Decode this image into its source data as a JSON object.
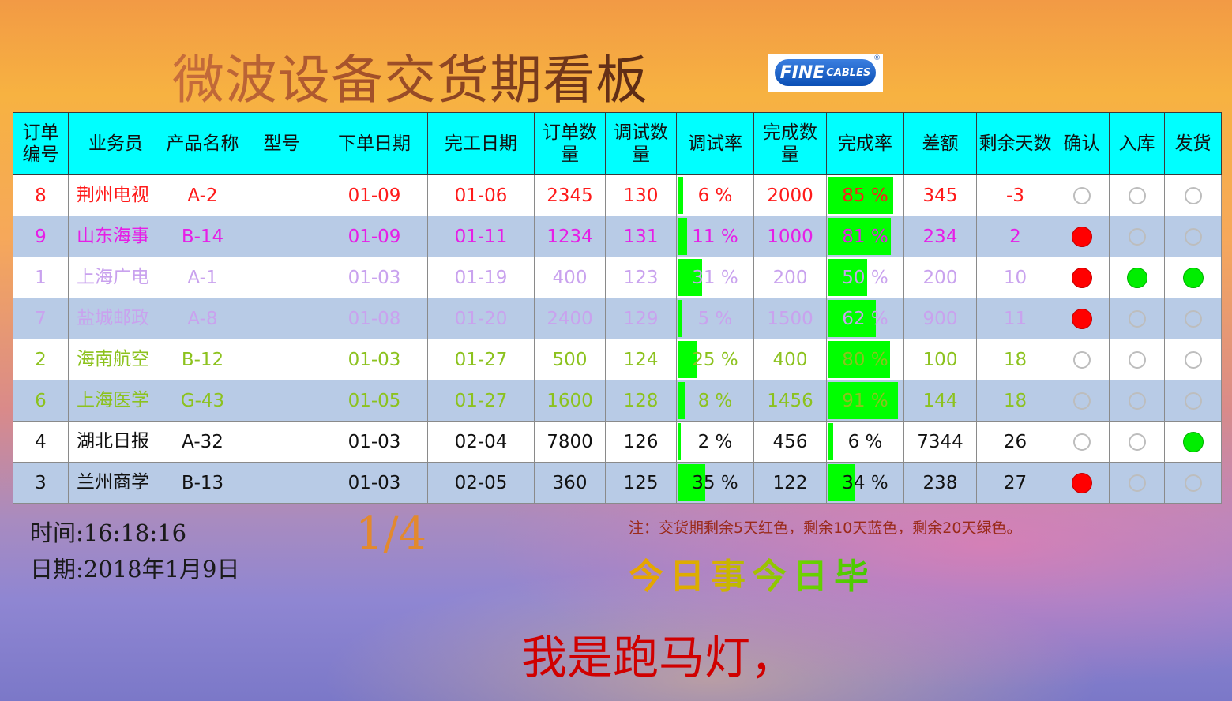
{
  "title": "微波设备交货期看板",
  "logo": {
    "main": "FINE",
    "sub": "CABLES",
    "reg": "®"
  },
  "columns": [
    "订单编号",
    "业务员",
    "产品名称",
    "型号",
    "下单日期",
    "完工日期",
    "订单数量",
    "调试数量",
    "调试率",
    "完成数量",
    "完成率",
    "差额",
    "剩余天数",
    "确认",
    "入库",
    "发货"
  ],
  "colors": {
    "header_bg": "#00ffff",
    "row_even_bg": "#b8cbe6",
    "bar": "#00ff00",
    "dot_red": "#ff0000",
    "dot_green": "#00ee00"
  },
  "rows": [
    {
      "id": "8",
      "salesman": "荆州电视",
      "product": "A-2",
      "model": "",
      "order_date": "01-09",
      "finish_date": "01-06",
      "order_qty": "2345",
      "debug_qty": "130",
      "debug_rate": "6 %",
      "debug_rate_value": 6,
      "done_qty": "2000",
      "done_rate": "85 %",
      "done_rate_value": 85,
      "diff": "345",
      "days_left": "-3",
      "confirm": "off",
      "stock": "off",
      "ship": "off",
      "color": "#ff1a1a"
    },
    {
      "id": "9",
      "salesman": "山东海事",
      "product": "B-14",
      "model": "",
      "order_date": "01-09",
      "finish_date": "01-11",
      "order_qty": "1234",
      "debug_qty": "131",
      "debug_rate": "11 %",
      "debug_rate_value": 11,
      "done_qty": "1000",
      "done_rate": "81 %",
      "done_rate_value": 81,
      "diff": "234",
      "days_left": "2",
      "confirm": "red",
      "stock": "off",
      "ship": "off",
      "color": "#e61ee6"
    },
    {
      "id": "1",
      "salesman": "上海广电",
      "product": "A-1",
      "model": "",
      "order_date": "01-03",
      "finish_date": "01-19",
      "order_qty": "400",
      "debug_qty": "123",
      "debug_rate": "31 %",
      "debug_rate_value": 31,
      "done_qty": "200",
      "done_rate": "50 %",
      "done_rate_value": 50,
      "diff": "200",
      "days_left": "10",
      "confirm": "red",
      "stock": "green",
      "ship": "green",
      "color": "#c9a2ee"
    },
    {
      "id": "7",
      "salesman": "盐城邮政",
      "product": "A-8",
      "model": "",
      "order_date": "01-08",
      "finish_date": "01-20",
      "order_qty": "2400",
      "debug_qty": "129",
      "debug_rate": "5 %",
      "debug_rate_value": 5,
      "done_qty": "1500",
      "done_rate": "62 %",
      "done_rate_value": 62,
      "diff": "900",
      "days_left": "11",
      "confirm": "red",
      "stock": "off",
      "ship": "off",
      "color": "#c9a2ee"
    },
    {
      "id": "2",
      "salesman": "海南航空",
      "product": "B-12",
      "model": "",
      "order_date": "01-03",
      "finish_date": "01-27",
      "order_qty": "500",
      "debug_qty": "124",
      "debug_rate": "25 %",
      "debug_rate_value": 25,
      "done_qty": "400",
      "done_rate": "80 %",
      "done_rate_value": 80,
      "diff": "100",
      "days_left": "18",
      "confirm": "off",
      "stock": "off",
      "ship": "off",
      "color": "#8cc21e"
    },
    {
      "id": "6",
      "salesman": "上海医学",
      "product": "G-43",
      "model": "",
      "order_date": "01-05",
      "finish_date": "01-27",
      "order_qty": "1600",
      "debug_qty": "128",
      "debug_rate": "8 %",
      "debug_rate_value": 8,
      "done_qty": "1456",
      "done_rate": "91 %",
      "done_rate_value": 91,
      "diff": "144",
      "days_left": "18",
      "confirm": "off",
      "stock": "off",
      "ship": "off",
      "color": "#8cc21e"
    },
    {
      "id": "4",
      "salesman": "湖北日报",
      "product": "A-32",
      "model": "",
      "order_date": "01-03",
      "finish_date": "02-04",
      "order_qty": "7800",
      "debug_qty": "126",
      "debug_rate": "2 %",
      "debug_rate_value": 2,
      "done_qty": "456",
      "done_rate": "6 %",
      "done_rate_value": 6,
      "diff": "7344",
      "days_left": "26",
      "confirm": "off",
      "stock": "off",
      "ship": "green",
      "color": "#111111"
    },
    {
      "id": "3",
      "salesman": "兰州商学",
      "product": "B-13",
      "model": "",
      "order_date": "01-03",
      "finish_date": "02-05",
      "order_qty": "360",
      "debug_qty": "125",
      "debug_rate": "35 %",
      "debug_rate_value": 35,
      "done_qty": "122",
      "done_rate": "34 %",
      "done_rate_value": 34,
      "diff": "238",
      "days_left": "27",
      "confirm": "red",
      "stock": "off",
      "ship": "off",
      "color": "#111111"
    }
  ],
  "footer": {
    "time": "时间:16:18:16",
    "date": "日期:2018年1月9日",
    "page": "1/4",
    "note": "注：交货期剩余5天红色，剩余10天蓝色，剩余20天绿色。",
    "motto": "今日事今日毕",
    "marquee": "我是跑马灯，"
  }
}
